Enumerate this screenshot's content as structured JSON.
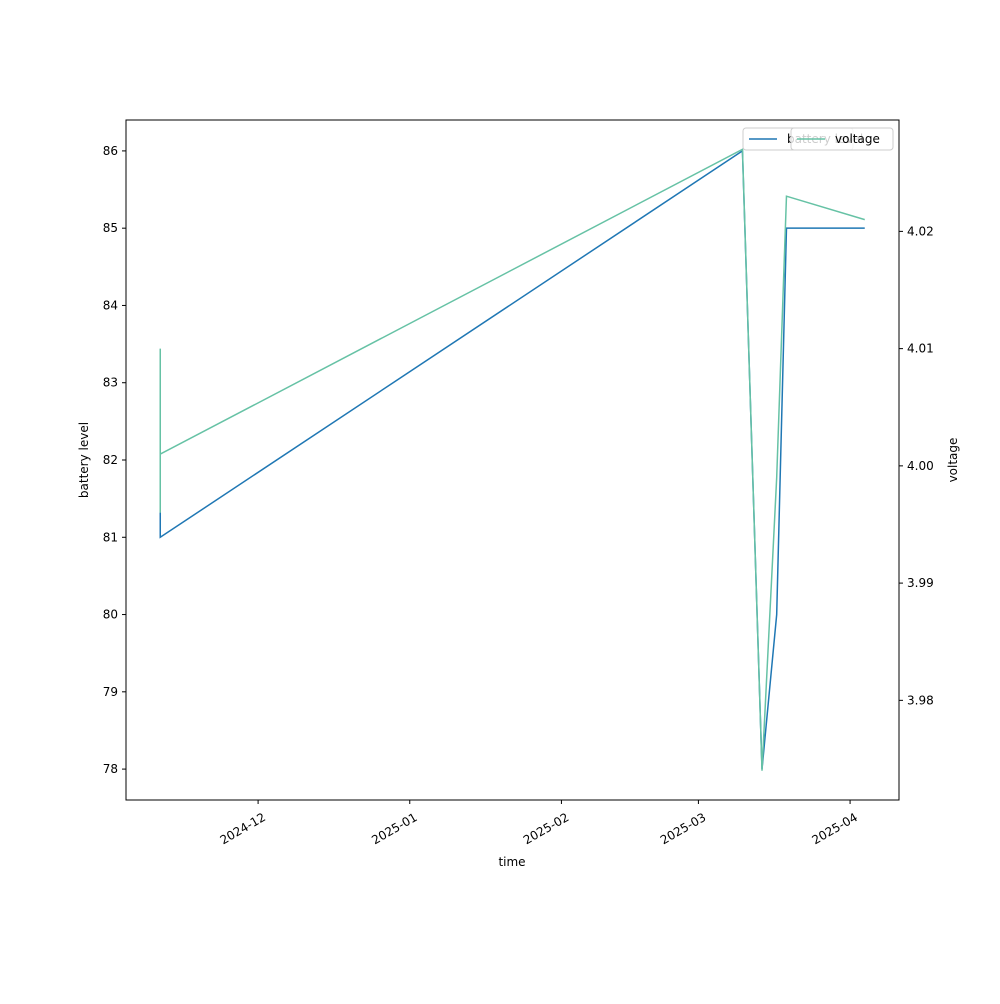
{
  "chart_data": {
    "type": "line",
    "x_label": "time",
    "y_label": "battery level",
    "y2_label": "voltage",
    "x": [
      "2024-11-11",
      "2024-11-11",
      "2024-11-11",
      "2025-03-10",
      "2025-03-14",
      "2025-03-17",
      "2025-03-19",
      "2025-04-04"
    ],
    "series": [
      {
        "name": "battery level",
        "color": "#1f77b4",
        "values": [
          83,
          81.3,
          81,
          86,
          78,
          80,
          85,
          85
        ]
      },
      {
        "name": "voltage",
        "color": "#66c2a5",
        "axis": "y2",
        "values": [
          4.01,
          3.996,
          4.001,
          4.027,
          3.974,
          3.999,
          4.023,
          4.021
        ]
      }
    ],
    "xlim": [
      "2024-11-04",
      "2025-04-11"
    ],
    "xticks": [
      {
        "value": "2024-12-01",
        "label": "2024-12"
      },
      {
        "value": "2025-01-01",
        "label": "2025-01"
      },
      {
        "value": "2025-02-01",
        "label": "2025-02"
      },
      {
        "value": "2025-03-01",
        "label": "2025-03"
      },
      {
        "value": "2025-04-01",
        "label": "2025-04"
      }
    ],
    "ylim": [
      77.6,
      86.4
    ],
    "yticks": [
      78,
      79,
      80,
      81,
      82,
      83,
      84,
      85,
      86
    ],
    "y2lim": [
      3.9715,
      4.0295
    ],
    "y2ticks": [
      3.98,
      3.99,
      {
        "value": 4.0,
        "label": "4.00"
      },
      4.01,
      4.02
    ],
    "grid": false,
    "legend": "upper right"
  }
}
